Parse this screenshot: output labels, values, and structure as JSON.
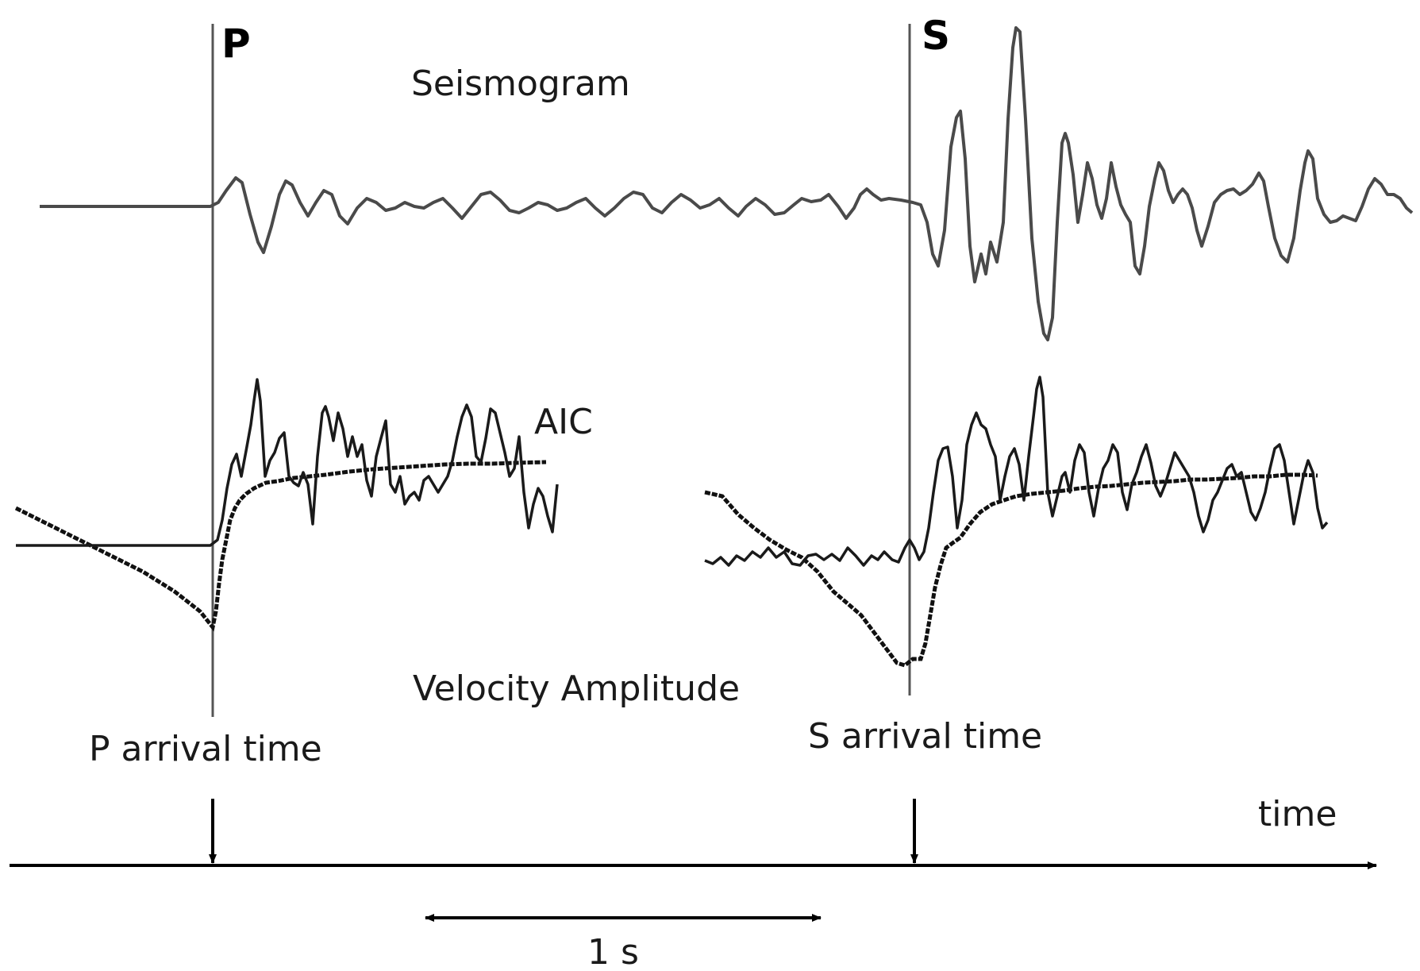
{
  "labels": {
    "p_marker": "P",
    "s_marker": "S",
    "seismogram": "Seismogram",
    "aic": "AIC",
    "velocity_amplitude": "Velocity Amplitude",
    "p_arrival": "P arrival time",
    "s_arrival": "S arrival time",
    "time_axis": "time",
    "scale_bar": "1 s"
  },
  "colors": {
    "seismogram_trace": "#4a4a4a",
    "pick_line": "#555555",
    "aic_curve": "#111111",
    "velocity_curve": "#1a1a1a",
    "axis": "#000000"
  },
  "icons": {
    "axis_arrow": "arrow-right-icon",
    "pick_arrow": "arrow-down-icon",
    "scale_arrow": "double-arrow-icon"
  }
}
